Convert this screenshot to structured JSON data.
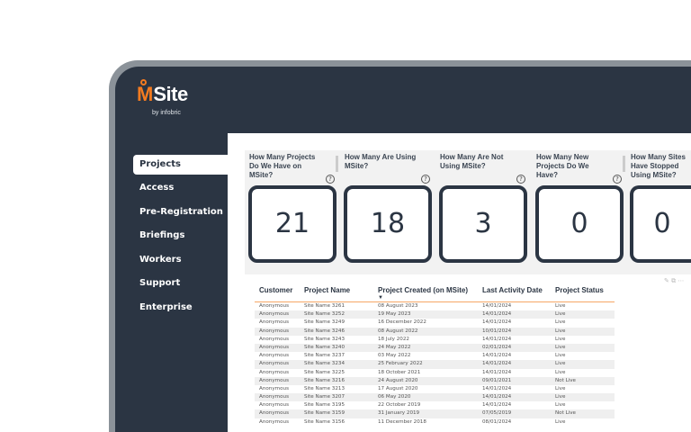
{
  "brand": {
    "name_m": "M",
    "name_rest": "Site",
    "tagline": "by infobric"
  },
  "sidebar": {
    "items": [
      {
        "label": "Projects",
        "active": true
      },
      {
        "label": "Access"
      },
      {
        "label": "Pre-Registration"
      },
      {
        "label": "Briefings"
      },
      {
        "label": "Workers"
      },
      {
        "label": "Support"
      },
      {
        "label": "Enterprise"
      }
    ]
  },
  "kpis": [
    {
      "title": "How Many Projects Do We Have on MSite?",
      "value": "21"
    },
    {
      "title": "How Many Are Using MSite?",
      "value": "18"
    },
    {
      "title": "How Many Are Not Using MSite?",
      "value": "3"
    },
    {
      "title": "How Many New Projects Do We Have?",
      "value": "0"
    },
    {
      "title": "How Many Sites Have Stopped Using MSite?",
      "value": "0"
    }
  ],
  "table": {
    "columns": [
      "Customer",
      "Project Name",
      "Project Created (on MSite)",
      "Last Activity Date",
      "Project Status"
    ],
    "rows": [
      [
        "Anonymous",
        "Site Name 3261",
        "08 August 2023",
        "14/01/2024",
        "Live"
      ],
      [
        "Anonymous",
        "Site Name 3252",
        "19 May 2023",
        "14/01/2024",
        "Live"
      ],
      [
        "Anonymous",
        "Site Name 3249",
        "16 December 2022",
        "14/01/2024",
        "Live"
      ],
      [
        "Anonymous",
        "Site Name 3246",
        "08 August 2022",
        "10/01/2024",
        "Live"
      ],
      [
        "Anonymous",
        "Site Name 3243",
        "18 July 2022",
        "14/01/2024",
        "Live"
      ],
      [
        "Anonymous",
        "Site Name 3240",
        "24 May 2022",
        "02/01/2024",
        "Live"
      ],
      [
        "Anonymous",
        "Site Name 3237",
        "03 May 2022",
        "14/01/2024",
        "Live"
      ],
      [
        "Anonymous",
        "Site Name 3234",
        "25 February 2022",
        "14/01/2024",
        "Live"
      ],
      [
        "Anonymous",
        "Site Name 3225",
        "18 October 2021",
        "14/01/2024",
        "Live"
      ],
      [
        "Anonymous",
        "Site Name 3216",
        "24 August 2020",
        "09/01/2021",
        "Not Live"
      ],
      [
        "Anonymous",
        "Site Name 3213",
        "17 August 2020",
        "14/01/2024",
        "Live"
      ],
      [
        "Anonymous",
        "Site Name 3207",
        "06 May 2020",
        "14/01/2024",
        "Live"
      ],
      [
        "Anonymous",
        "Site Name 3195",
        "22 October 2019",
        "14/01/2024",
        "Live"
      ],
      [
        "Anonymous",
        "Site Name 3159",
        "31 January 2019",
        "07/05/2019",
        "Not Live"
      ],
      [
        "Anonymous",
        "Site Name 3156",
        "11 December 2018",
        "08/01/2024",
        "Live"
      ]
    ]
  },
  "colors": {
    "navy": "#2b3543",
    "accent": "#f47b20"
  }
}
